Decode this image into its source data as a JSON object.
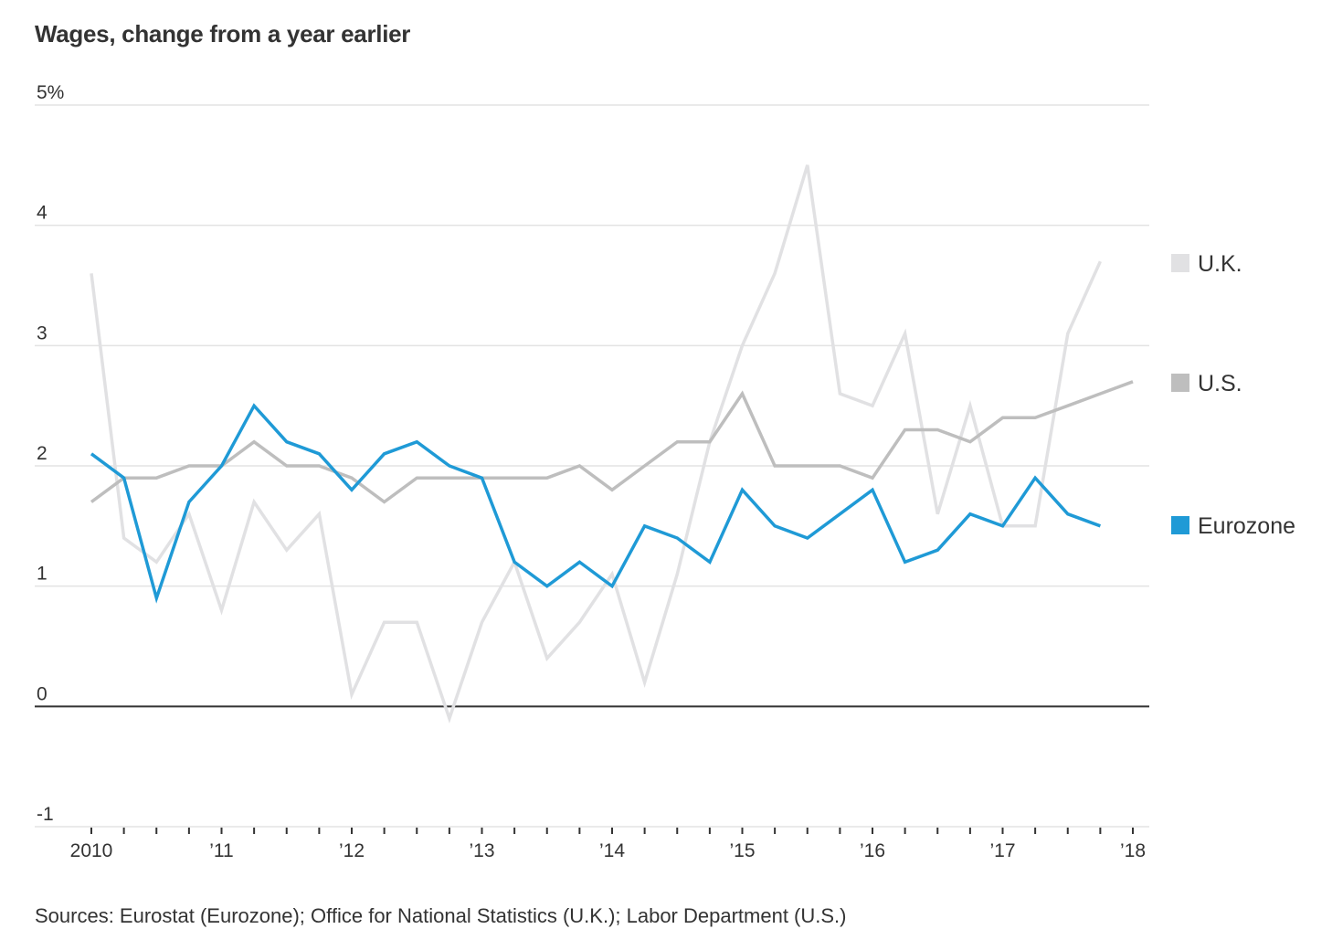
{
  "title": "Wages, change from a year earlier",
  "source": "Sources: Eurostat (Eurozone); Office for National Statistics (U.K.); Labor Department (U.S.)",
  "chart_data": {
    "type": "line",
    "title": "Wages, change from a year earlier",
    "xlabel": "",
    "ylabel": "",
    "ylim": [
      -1,
      5
    ],
    "yticks": [
      {
        "value": 5,
        "label": "5%"
      },
      {
        "value": 4,
        "label": "4"
      },
      {
        "value": 3,
        "label": "3"
      },
      {
        "value": 2,
        "label": "2"
      },
      {
        "value": 1,
        "label": "1"
      },
      {
        "value": 0,
        "label": "0"
      },
      {
        "value": -1,
        "label": "-1"
      }
    ],
    "xlim": [
      2010.0,
      2018.0
    ],
    "x_step": "quarterly",
    "xticks": [
      {
        "value": 2010,
        "label": "2010"
      },
      {
        "value": 2011,
        "label": "’11"
      },
      {
        "value": 2012,
        "label": "’12"
      },
      {
        "value": 2013,
        "label": "’13"
      },
      {
        "value": 2014,
        "label": "’14"
      },
      {
        "value": 2015,
        "label": "’15"
      },
      {
        "value": 2016,
        "label": "’16"
      },
      {
        "value": 2017,
        "label": "’17"
      },
      {
        "value": 2018,
        "label": "’18"
      }
    ],
    "grid": true,
    "legend_position": "right",
    "series": [
      {
        "name": "U.K.",
        "color": "#e1e1e3",
        "start": 2010.0,
        "values": [
          3.6,
          1.4,
          1.2,
          1.6,
          0.8,
          1.7,
          1.3,
          1.6,
          0.1,
          0.7,
          0.7,
          -0.1,
          0.7,
          1.2,
          0.4,
          0.7,
          1.1,
          0.2,
          1.1,
          2.2,
          3.0,
          3.6,
          4.5,
          2.6,
          2.5,
          3.1,
          1.6,
          2.5,
          1.5,
          1.5,
          3.1,
          3.7
        ]
      },
      {
        "name": "U.S.",
        "color": "#bebebe",
        "start": 2010.0,
        "values": [
          1.7,
          1.9,
          1.9,
          2.0,
          2.0,
          2.2,
          2.0,
          2.0,
          1.9,
          1.7,
          1.9,
          1.9,
          1.9,
          1.9,
          1.9,
          2.0,
          1.8,
          2.0,
          2.2,
          2.2,
          2.6,
          2.0,
          2.0,
          2.0,
          1.9,
          2.3,
          2.3,
          2.2,
          2.4,
          2.4,
          2.5,
          2.6,
          2.7
        ]
      },
      {
        "name": "Eurozone",
        "color": "#1f9ad6",
        "start": 2010.0,
        "values": [
          2.1,
          1.9,
          0.9,
          1.7,
          2.0,
          2.5,
          2.2,
          2.1,
          1.8,
          2.1,
          2.2,
          2.0,
          1.9,
          1.2,
          1.0,
          1.2,
          1.0,
          1.5,
          1.4,
          1.2,
          1.8,
          1.5,
          1.4,
          1.6,
          1.8,
          1.2,
          1.3,
          1.6,
          1.5,
          1.9,
          1.6,
          1.5
        ]
      }
    ]
  },
  "colors": {
    "gridline": "#e3e3e3",
    "zero_line": "#333333",
    "text": "#333333"
  }
}
